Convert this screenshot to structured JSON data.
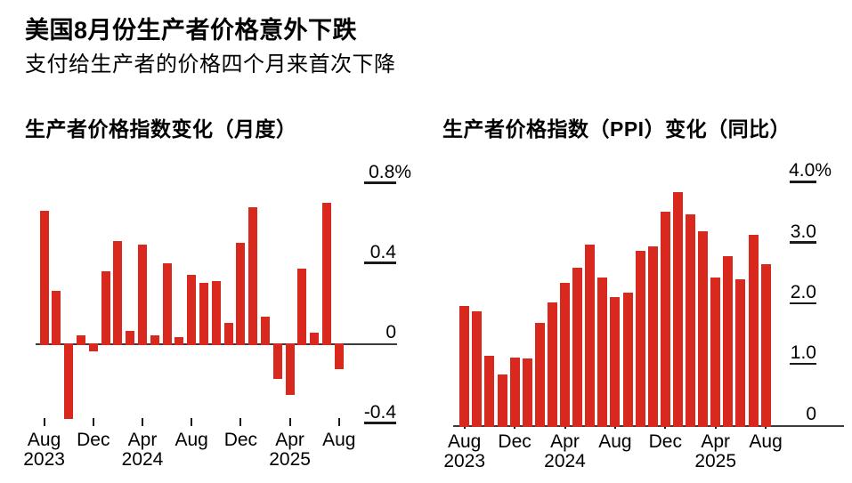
{
  "header": {
    "title": "美国8月份生产者价格意外下跌",
    "subtitle": "支付给生产者的价格四个月来首次下降"
  },
  "colors": {
    "bar": "#d9291f",
    "axis": "#3c3c3c",
    "tick": "#1a1a1a",
    "text": "#000000",
    "background": "#ffffff"
  },
  "chart_data": [
    {
      "type": "bar",
      "title": "生产者价格指数变化（月度）",
      "unit": "%",
      "categories": [
        "Aug 2023",
        "Sep 2023",
        "Oct 2023",
        "Nov 2023",
        "Dec 2023",
        "Jan 2024",
        "Feb 2024",
        "Mar 2024",
        "Apr 2024",
        "May 2024",
        "Jun 2024",
        "Jul 2024",
        "Aug 2024",
        "Sep 2024",
        "Oct 2024",
        "Nov 2024",
        "Dec 2024",
        "Jan 2025",
        "Feb 2025",
        "Mar 2025",
        "Apr 2025",
        "May 2025",
        "Jun 2025",
        "Jul 2025",
        "Aug 2025"
      ],
      "values": [
        0.66,
        0.26,
        -0.37,
        0.04,
        -0.03,
        0.36,
        0.51,
        0.06,
        0.49,
        0.04,
        0.4,
        0.03,
        0.34,
        0.3,
        0.31,
        0.1,
        0.5,
        0.68,
        0.13,
        -0.17,
        -0.25,
        0.37,
        0.05,
        0.7,
        -0.12
      ],
      "ylim": [
        -0.45,
        0.95
      ],
      "grid": false,
      "legend": "none",
      "ylabel_side": "right",
      "yticks": [
        {
          "value": 0.8,
          "label": "0.8%"
        },
        {
          "value": 0.4,
          "label": "0.4"
        },
        {
          "value": 0,
          "label": "0"
        },
        {
          "value": -0.4,
          "label": "-0.4"
        }
      ],
      "xticks": [
        {
          "index": 0,
          "month": "Aug",
          "year": "2023"
        },
        {
          "index": 4,
          "month": "Dec",
          "year": ""
        },
        {
          "index": 8,
          "month": "Apr",
          "year": "2024"
        },
        {
          "index": 12,
          "month": "Aug",
          "year": ""
        },
        {
          "index": 16,
          "month": "Dec",
          "year": ""
        },
        {
          "index": 20,
          "month": "Apr",
          "year": "2025"
        },
        {
          "index": 24,
          "month": "Aug",
          "year": ""
        }
      ]
    },
    {
      "type": "bar",
      "title": "生产者价格指数（PPI）变化（同比）",
      "unit": "%",
      "categories": [
        "Aug 2023",
        "Sep 2023",
        "Oct 2023",
        "Nov 2023",
        "Dec 2023",
        "Jan 2024",
        "Feb 2024",
        "Mar 2024",
        "Apr 2024",
        "May 2024",
        "Jun 2024",
        "Jul 2024",
        "Aug 2024",
        "Sep 2024",
        "Oct 2024",
        "Nov 2024",
        "Dec 2024",
        "Jan 2025",
        "Feb 2025",
        "Mar 2025",
        "Apr 2025",
        "May 2025",
        "Jun 2025",
        "Jul 2025",
        "Aug 2025"
      ],
      "values": [
        1.96,
        1.86,
        1.13,
        0.82,
        1.1,
        1.09,
        1.68,
        2.02,
        2.34,
        2.58,
        2.96,
        2.43,
        2.1,
        2.17,
        2.86,
        2.94,
        3.51,
        3.83,
        3.46,
        3.18,
        2.43,
        2.77,
        2.39,
        3.13,
        2.64
      ],
      "ylim": [
        0,
        4.35
      ],
      "grid": false,
      "legend": "none",
      "ylabel_side": "right",
      "yticks": [
        {
          "value": 4.0,
          "label": "4.0%"
        },
        {
          "value": 3.0,
          "label": "3.0"
        },
        {
          "value": 2.0,
          "label": "2.0"
        },
        {
          "value": 1.0,
          "label": "1.0"
        },
        {
          "value": 0,
          "label": "0"
        }
      ],
      "xticks": [
        {
          "index": 0,
          "month": "Aug",
          "year": "2023"
        },
        {
          "index": 4,
          "month": "Dec",
          "year": ""
        },
        {
          "index": 8,
          "month": "Apr",
          "year": "2024"
        },
        {
          "index": 12,
          "month": "Aug",
          "year": ""
        },
        {
          "index": 16,
          "month": "Dec",
          "year": ""
        },
        {
          "index": 20,
          "month": "Apr",
          "year": "2025"
        },
        {
          "index": 24,
          "month": "Aug",
          "year": ""
        }
      ]
    }
  ]
}
